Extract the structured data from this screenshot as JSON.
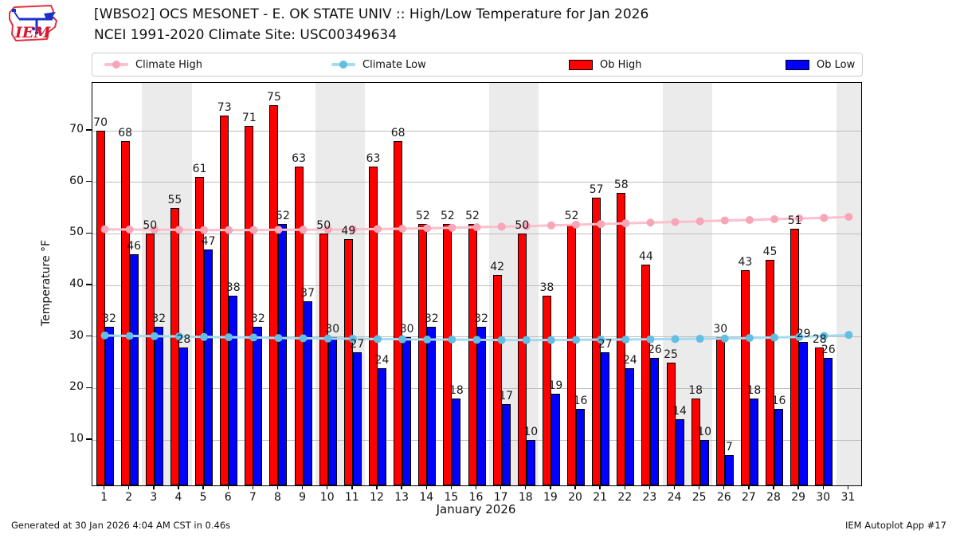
{
  "header": {
    "title": "[WBSO2] OCS MESONET - E. OK STATE UNIV :: High/Low Temperature for Jan 2026",
    "subtitle": "NCEI 1991-2020 Climate Site: USC00349634",
    "logo_text": "IEM"
  },
  "legend": [
    {
      "label": "Climate High",
      "type": "line",
      "line_color": "#fbc0cc",
      "marker_color": "#f7a6b8"
    },
    {
      "label": "Climate Low",
      "type": "line",
      "line_color": "#a5dbf0",
      "marker_color": "#62bee2"
    },
    {
      "label": "Ob High",
      "type": "bar",
      "color": "#ff0000"
    },
    {
      "label": "Ob Low",
      "type": "bar",
      "color": "#0000ff"
    }
  ],
  "chart_data": {
    "type": "bar",
    "title": "[WBSO2] High/Low Temperature for Jan 2026",
    "xlabel": "January 2026",
    "ylabel": "Temperature °F",
    "x": [
      1,
      2,
      3,
      4,
      5,
      6,
      7,
      8,
      9,
      10,
      11,
      12,
      13,
      14,
      15,
      16,
      17,
      18,
      19,
      20,
      21,
      22,
      23,
      24,
      25,
      26,
      27,
      28,
      29,
      30,
      31
    ],
    "series": [
      {
        "name": "Ob High",
        "type": "bar",
        "color": "#ff0000",
        "values": [
          70,
          68,
          50,
          55,
          61,
          73,
          71,
          75,
          63,
          50,
          49,
          63,
          68,
          52,
          52,
          52,
          42,
          50,
          38,
          52,
          57,
          58,
          44,
          25,
          18,
          30,
          43,
          45,
          51,
          28,
          null
        ]
      },
      {
        "name": "Ob Low",
        "type": "bar",
        "color": "#0000ff",
        "values": [
          32,
          46,
          32,
          28,
          47,
          38,
          32,
          52,
          37,
          30,
          27,
          24,
          30,
          32,
          18,
          32,
          17,
          10,
          19,
          16,
          27,
          24,
          26,
          14,
          10,
          7,
          18,
          16,
          29,
          26,
          null
        ]
      },
      {
        "name": "Climate High",
        "type": "line",
        "line_color": "#fbc0cc",
        "marker_color": "#f7a6b8",
        "values": [
          50.9,
          50.85,
          50.8,
          50.8,
          50.75,
          50.75,
          50.75,
          50.8,
          50.8,
          50.85,
          50.9,
          50.95,
          51.0,
          51.1,
          51.2,
          51.3,
          51.4,
          51.5,
          51.65,
          51.8,
          51.9,
          52.05,
          52.2,
          52.3,
          52.45,
          52.6,
          52.7,
          52.85,
          53.0,
          53.1,
          53.3
        ]
      },
      {
        "name": "Climate Low",
        "type": "line",
        "line_color": "#a5dbf0",
        "marker_color": "#62bee2",
        "values": [
          30.3,
          30.2,
          30.15,
          30.1,
          30.0,
          29.95,
          29.9,
          29.8,
          29.75,
          29.7,
          29.65,
          29.6,
          29.55,
          29.5,
          29.5,
          29.45,
          29.4,
          29.4,
          29.4,
          29.45,
          29.5,
          29.5,
          29.55,
          29.6,
          29.65,
          29.7,
          29.8,
          29.9,
          30.0,
          30.2,
          30.4
        ]
      }
    ],
    "yticks": [
      10,
      20,
      30,
      40,
      50,
      60,
      70
    ],
    "ylim": [
      1.2,
      79.3
    ],
    "xlim": [
      0.5,
      31.5
    ],
    "weekend_bands": [
      [
        2.5,
        4.5
      ],
      [
        9.5,
        11.5
      ],
      [
        16.5,
        18.5
      ],
      [
        23.5,
        25.5
      ],
      [
        30.5,
        31.5
      ]
    ],
    "grid": "horizontal",
    "legend_position": "top"
  },
  "footer": {
    "left": "Generated at 30 Jan 2026 4:04 AM CST in 0.46s",
    "right": "IEM Autoplot App #17"
  }
}
